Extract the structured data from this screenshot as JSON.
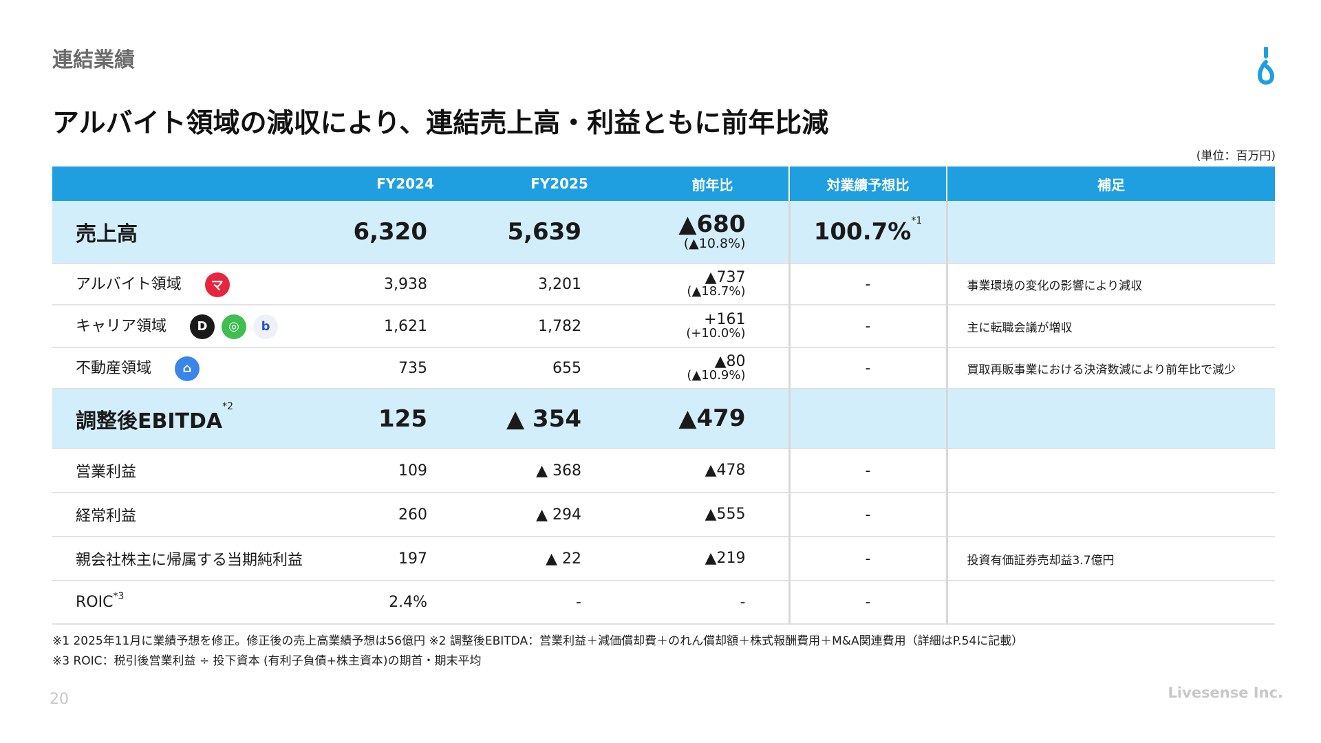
{
  "section_title": "連結業績",
  "headline": "アルバイト領域の減収により、連結売上高・利益ともに前年比減",
  "unit": "(単位：百万円)",
  "colors": {
    "header": "#1f9fe0",
    "highlight": "#d3eefb",
    "logo": "#1f9fe0"
  },
  "table": {
    "headers": [
      "",
      "FY2024",
      "FY2025",
      "前年比",
      "対業績予想比",
      "補足"
    ],
    "rows": [
      {
        "label": "売上高",
        "fy2024": "6,320",
        "fy2025": "5,639",
        "yoy": "▲680",
        "yoy_pct": "(▲10.8%)",
        "vs_forecast": "100.7%",
        "vs_forecast_note": "*1",
        "note": ""
      },
      {
        "label": "アルバイト領域",
        "icons": [
          "machbaito-icon"
        ],
        "fy2024": "3,938",
        "fy2025": "3,201",
        "yoy": "▲737",
        "yoy_pct": "(▲18.7%)",
        "vs_forecast": "-",
        "note": "事業環境の変化の影響により減収"
      },
      {
        "label": "キャリア領域",
        "icons": [
          "doda-like-d-icon",
          "handshake-icon",
          "b-icon"
        ],
        "fy2024": "1,621",
        "fy2025": "1,782",
        "yoy": "+161",
        "yoy_pct": "(+10.0%)",
        "vs_forecast": "-",
        "note": "主に転職会議が増収"
      },
      {
        "label": "不動産領域",
        "icons": [
          "house-ie-icon"
        ],
        "fy2024": "735",
        "fy2025": "655",
        "yoy": "▲80",
        "yoy_pct": "(▲10.9%)",
        "vs_forecast": "-",
        "note": "買取再販事業における決済数減により前年比で減少"
      },
      {
        "label": "調整後EBITDA",
        "label_note": "*2",
        "fy2024": "125",
        "fy2025": "▲ 354",
        "yoy": "▲479",
        "vs_forecast": "",
        "note": ""
      },
      {
        "label": "営業利益",
        "fy2024": "109",
        "fy2025": "▲ 368",
        "yoy": "▲478",
        "vs_forecast": "-",
        "note": ""
      },
      {
        "label": "経常利益",
        "fy2024": "260",
        "fy2025": "▲ 294",
        "yoy": "▲555",
        "vs_forecast": "-",
        "note": ""
      },
      {
        "label": "親会社株主に帰属する当期純利益",
        "fy2024": "197",
        "fy2025": "▲ 22",
        "yoy": "▲219",
        "vs_forecast": "-",
        "note": "投資有価証券売却益3.7億円"
      },
      {
        "label": "ROIC",
        "label_note": "*3",
        "fy2024": "2.4%",
        "fy2025": "-",
        "yoy": "-",
        "vs_forecast": "-",
        "note": ""
      }
    ]
  },
  "footnotes": [
    "※1 2025年11月に業績予想を修正。修正後の売上高業績予想は56億円 ※2 調整後EBITDA：営業利益＋減価償却費＋のれん償却額＋株式報酬費用＋M&A関連費用（詳細はP.54に記載）",
    "※3 ROIC：税引後営業利益 ÷ 投下資本 (有利子負債+株主資本)の期首・期末平均"
  ],
  "page_number": "20",
  "company": "Livesense Inc."
}
